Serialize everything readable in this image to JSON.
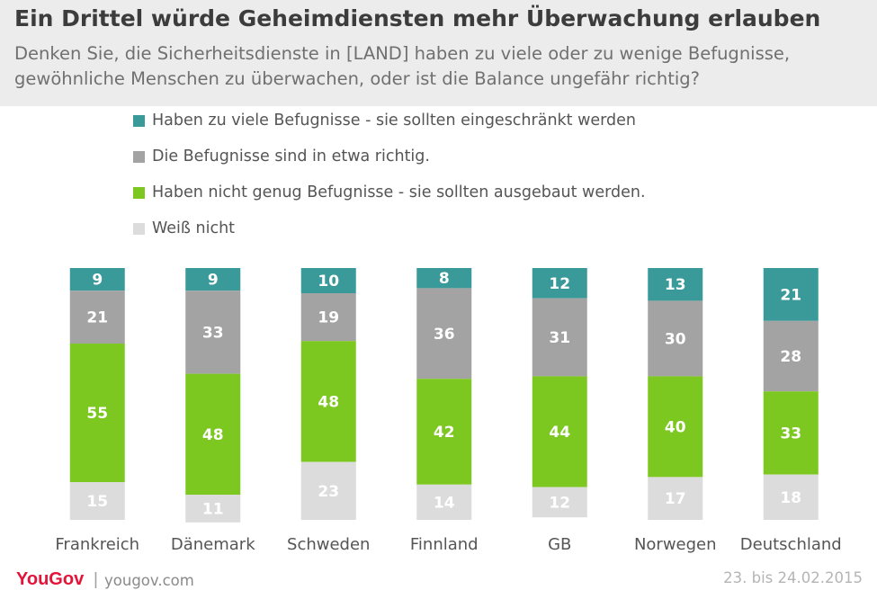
{
  "title": "Ein Drittel würde Geheimdiensten mehr Überwachung erlauben",
  "subtitle": "Denken Sie, die Sicherheitsdienste in [LAND] haben zu viele oder zu wenige Befugnisse, gewöhnliche Menschen zu überwachen, oder ist die Balance ungefähr richtig?",
  "footer": {
    "brand": "YouGov",
    "separator": "|",
    "site": "yougov.com",
    "date": "23. bis 24.02.2015"
  },
  "chart_data": {
    "type": "bar",
    "stacked": true,
    "orientation": "vertical",
    "categories": [
      "Frankreich",
      "Dänemark",
      "Schweden",
      "Finnland",
      "GB",
      "Norwegen",
      "Deutschland"
    ],
    "series": [
      {
        "name": "Haben zu viele Befugnisse - sie sollten eingeschränkt werden",
        "color": "#3a9a9a",
        "values": [
          9,
          9,
          10,
          8,
          12,
          13,
          21
        ]
      },
      {
        "name": "Die Befugnisse sind in etwa richtig.",
        "color": "#a3a3a3",
        "values": [
          21,
          33,
          19,
          36,
          31,
          30,
          28
        ]
      },
      {
        "name": "Haben nicht genug Befugnisse - sie sollten ausgebaut werden.",
        "color": "#7dc820",
        "values": [
          55,
          48,
          48,
          42,
          44,
          40,
          33
        ]
      },
      {
        "name": "Weiß nicht",
        "color": "#dcdcdc",
        "values": [
          15,
          11,
          23,
          14,
          12,
          17,
          18
        ]
      }
    ],
    "stack_order_top_to_bottom": [
      0,
      1,
      2,
      3
    ],
    "total": 100,
    "legend_position": "top-left",
    "data_labels": true,
    "grid": false
  }
}
